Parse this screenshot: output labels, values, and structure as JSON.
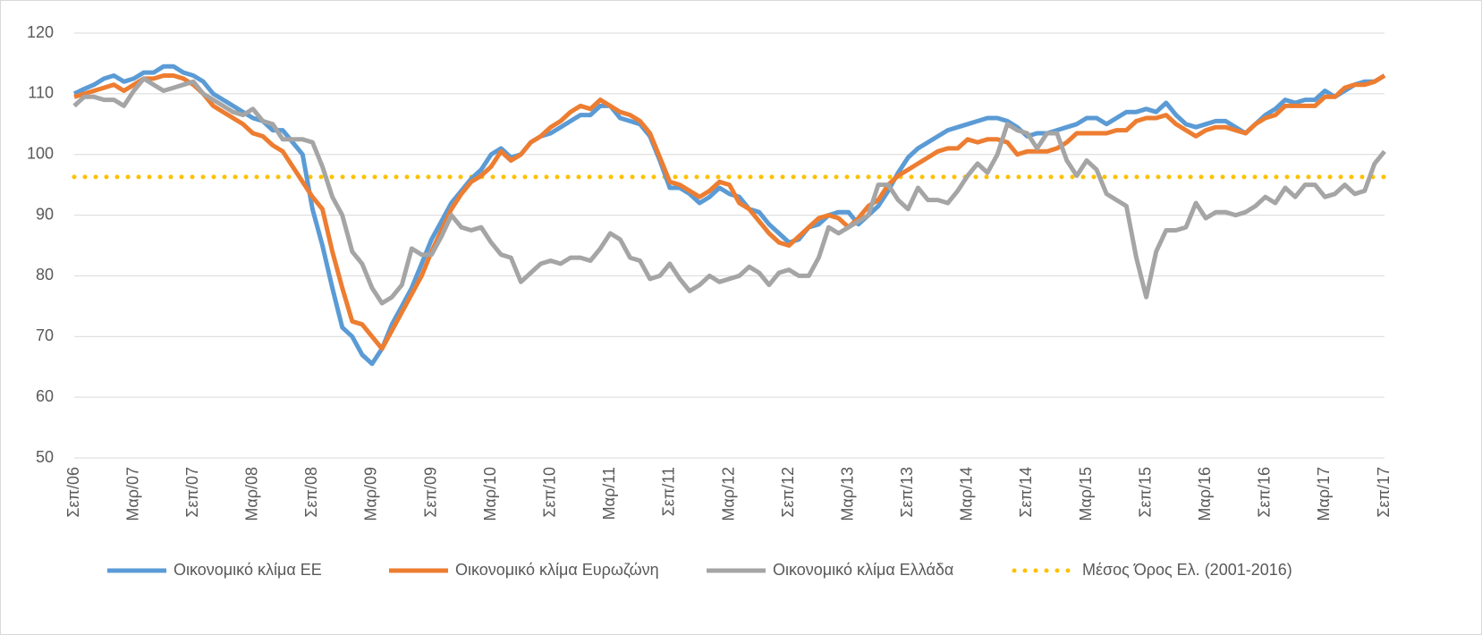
{
  "chart_data": {
    "type": "line",
    "categories": [
      "Σεπ/06",
      null,
      null,
      null,
      null,
      null,
      "Μαρ/07",
      null,
      null,
      null,
      null,
      null,
      "Σεπ/07",
      null,
      null,
      null,
      null,
      null,
      "Μαρ/08",
      null,
      null,
      null,
      null,
      null,
      "Σεπ/08",
      null,
      null,
      null,
      null,
      null,
      "Μαρ/09",
      null,
      null,
      null,
      null,
      null,
      "Σεπ/09",
      null,
      null,
      null,
      null,
      null,
      "Μαρ/10",
      null,
      null,
      null,
      null,
      null,
      "Σεπ/10",
      null,
      null,
      null,
      null,
      null,
      "Μαρ/11",
      null,
      null,
      null,
      null,
      null,
      "Σεπ/11",
      null,
      null,
      null,
      null,
      null,
      "Μαρ/12",
      null,
      null,
      null,
      null,
      null,
      "Σεπ/12",
      null,
      null,
      null,
      null,
      null,
      "Μαρ/13",
      null,
      null,
      null,
      null,
      null,
      "Σεπ/13",
      null,
      null,
      null,
      null,
      null,
      "Μαρ/14",
      null,
      null,
      null,
      null,
      null,
      "Σεπ/14",
      null,
      null,
      null,
      null,
      null,
      "Μαρ/15",
      null,
      null,
      null,
      null,
      null,
      "Σεπ/15",
      null,
      null,
      null,
      null,
      null,
      "Μαρ/16",
      null,
      null,
      null,
      null,
      null,
      "Σεπ/16",
      null,
      null,
      null,
      null,
      null,
      "Μαρ/17",
      null,
      null,
      null,
      null,
      null,
      "Σεπ/17"
    ],
    "series": [
      {
        "name": "Οικονομικό κλίμα ΕΕ",
        "color": "#5b9bd5",
        "values": [
          110,
          110.8,
          111.5,
          112.5,
          113,
          112,
          112.5,
          113.5,
          113.5,
          114.5,
          114.5,
          113.5,
          113,
          112,
          110,
          109,
          108,
          107,
          106,
          105.5,
          104,
          104,
          102,
          100,
          91,
          85,
          78,
          71.5,
          70,
          67,
          65.5,
          68,
          72,
          75,
          78,
          82,
          86,
          89,
          92,
          94,
          96,
          97.5,
          100,
          101,
          99.5,
          100,
          102,
          103,
          103.5,
          104.5,
          105.5,
          106.5,
          106.5,
          108,
          108,
          106,
          105.5,
          105,
          103,
          99,
          94.5,
          94.5,
          93.5,
          92,
          93,
          94.5,
          93.5,
          93,
          91,
          90.5,
          88.5,
          87,
          85.5,
          86,
          88,
          88.5,
          90,
          90.5,
          90.5,
          88.5,
          90,
          91.5,
          94,
          97,
          99.5,
          101,
          102,
          103,
          104,
          104.5,
          105,
          105.5,
          106,
          106,
          105.5,
          104.5,
          103,
          103.5,
          103.5,
          104,
          104.5,
          105,
          106,
          106,
          105,
          106,
          107,
          107,
          107.5,
          107,
          108.5,
          106.5,
          105,
          104.5,
          105,
          105.5,
          105.5,
          104.5,
          103.5,
          105,
          106.5,
          107.5,
          109,
          108.5,
          109,
          109,
          110.5,
          109.5,
          110.5,
          111.5,
          112,
          112,
          113
        ]
      },
      {
        "name": "Οικονομικό κλίμα Ευρωζώνη",
        "color": "#ed7d31",
        "values": [
          109.5,
          110,
          110.5,
          111,
          111.5,
          110.5,
          111.5,
          112.5,
          112.5,
          113,
          113,
          112.5,
          111.5,
          110,
          108,
          107,
          106,
          105,
          103.5,
          103,
          101.5,
          100.5,
          98,
          95.5,
          93,
          91,
          84,
          78,
          72.5,
          72,
          70,
          68,
          71,
          74,
          77,
          80,
          84,
          87.5,
          91,
          93.5,
          95.5,
          96.5,
          98,
          100.5,
          99,
          100,
          102,
          103,
          104.5,
          105.5,
          107,
          108,
          107.5,
          109,
          108,
          107,
          106.5,
          105.5,
          103.5,
          99.5,
          95.5,
          95,
          94,
          93,
          94,
          95.5,
          95,
          92,
          91,
          89,
          87,
          85.5,
          85,
          86.5,
          88,
          89.5,
          90,
          89.5,
          88,
          89.5,
          91.5,
          92.5,
          95,
          96.5,
          97.5,
          98.5,
          99.5,
          100.5,
          101,
          101,
          102.5,
          102,
          102.5,
          102.5,
          102,
          100,
          100.5,
          100.5,
          100.5,
          101,
          102,
          103.5,
          103.5,
          103.5,
          103.5,
          104,
          104,
          105.5,
          106,
          106,
          106.5,
          105,
          104,
          103,
          104,
          104.5,
          104.5,
          104,
          103.5,
          105,
          106,
          106.5,
          108,
          108,
          108,
          108,
          109.5,
          109.5,
          111,
          111.5,
          111.5,
          112,
          113
        ]
      },
      {
        "name": "Οικονομικό κλίμα Ελλάδα",
        "color": "#a5a5a5",
        "values": [
          108,
          109.5,
          109.5,
          109,
          109,
          108,
          110.5,
          112.5,
          111.5,
          110.5,
          111,
          111.5,
          112,
          110,
          109,
          108,
          107,
          106.5,
          107.5,
          105.5,
          105,
          102.5,
          102.5,
          102.5,
          102,
          98,
          93,
          90,
          84,
          82,
          78,
          75.5,
          76.5,
          78.5,
          84.5,
          83.5,
          83.5,
          86.5,
          90,
          88,
          87.5,
          88,
          85.5,
          83.5,
          83,
          79,
          80.5,
          82,
          82.5,
          82,
          83,
          83,
          82.5,
          84.5,
          87,
          86,
          83,
          82.5,
          79.5,
          80,
          82,
          79.5,
          77.5,
          78.5,
          80,
          79,
          79.5,
          80,
          81.5,
          80.5,
          78.5,
          80.5,
          81,
          80,
          80,
          83,
          88,
          87,
          88,
          89,
          90,
          95,
          95,
          92.5,
          91,
          94.5,
          92.5,
          92.5,
          92,
          94,
          96.5,
          98.5,
          97,
          100,
          105,
          104,
          103.5,
          101,
          103.5,
          103.5,
          99,
          96.5,
          99,
          97.5,
          93.5,
          92.5,
          91.5,
          83,
          76.5,
          84,
          87.5,
          87.5,
          88,
          92,
          89.5,
          90.5,
          90.5,
          90,
          90.5,
          91.5,
          93,
          92,
          94.5,
          93,
          95,
          95,
          93,
          93.5,
          95,
          93.5,
          94,
          98.5,
          100.5
        ]
      }
    ],
    "reference_line": {
      "name": "Μέσος Όρος Ελ. (2001-2016)",
      "value": 96.3,
      "color": "#ffc000"
    },
    "ylim": [
      50,
      120
    ],
    "yticks": [
      50,
      60,
      70,
      80,
      90,
      100,
      110,
      120
    ],
    "grid": true
  }
}
